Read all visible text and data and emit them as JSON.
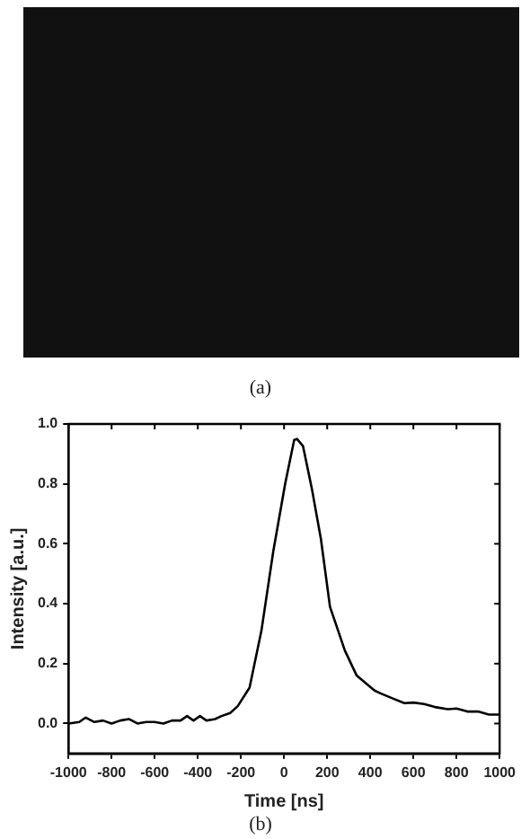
{
  "chart_data": {
    "type": "line",
    "xlabel": "Time [ns]",
    "ylabel": "Intensity [a.u.]",
    "annotations": [
      "(a)",
      "(b)"
    ],
    "x": [
      -1000,
      -950,
      -920,
      -880,
      -840,
      -800,
      -760,
      -720,
      -680,
      -640,
      -600,
      -560,
      -520,
      -480,
      -450,
      -420,
      -390,
      -360,
      -320,
      -290,
      -250,
      -215,
      -160,
      -105,
      -50,
      5,
      47,
      60,
      88,
      130,
      171,
      213,
      282,
      337,
      420,
      450,
      500,
      558,
      600,
      650,
      700,
      760,
      800,
      850,
      900,
      950,
      1000
    ],
    "series": [
      {
        "color": "#000000",
        "values": [
          0.0,
          0.005,
          0.02,
          0.005,
          0.01,
          0.0,
          0.01,
          0.015,
          0.0,
          0.005,
          0.005,
          0.0,
          0.01,
          0.01,
          0.025,
          0.01,
          0.025,
          0.01,
          0.015,
          0.025,
          0.035,
          0.058,
          0.12,
          0.31,
          0.575,
          0.8,
          0.947,
          0.95,
          0.926,
          0.78,
          0.616,
          0.39,
          0.244,
          0.16,
          0.11,
          0.1,
          0.085,
          0.068,
          0.07,
          0.065,
          0.055,
          0.048,
          0.05,
          0.04,
          0.04,
          0.03,
          0.03
        ]
      }
    ],
    "xlim": [
      -1000,
      1000
    ],
    "xticks": [
      -1000,
      -800,
      -600,
      -400,
      -200,
      0,
      200,
      400,
      600,
      800,
      1000
    ],
    "ylim": [
      -0.1,
      1.0
    ],
    "yticks": [
      {
        "value": 0,
        "label": "0.0"
      },
      {
        "value": 0.2,
        "label": "0.2"
      },
      {
        "value": 0.4,
        "label": "0.4"
      },
      {
        "value": 0.6,
        "label": "0.6"
      },
      {
        "value": 0.8,
        "label": "0.8"
      },
      {
        "value": 1.0,
        "label": "1.0"
      }
    ],
    "grid": false,
    "legend": false,
    "marker": "none",
    "line_style": "solid"
  }
}
